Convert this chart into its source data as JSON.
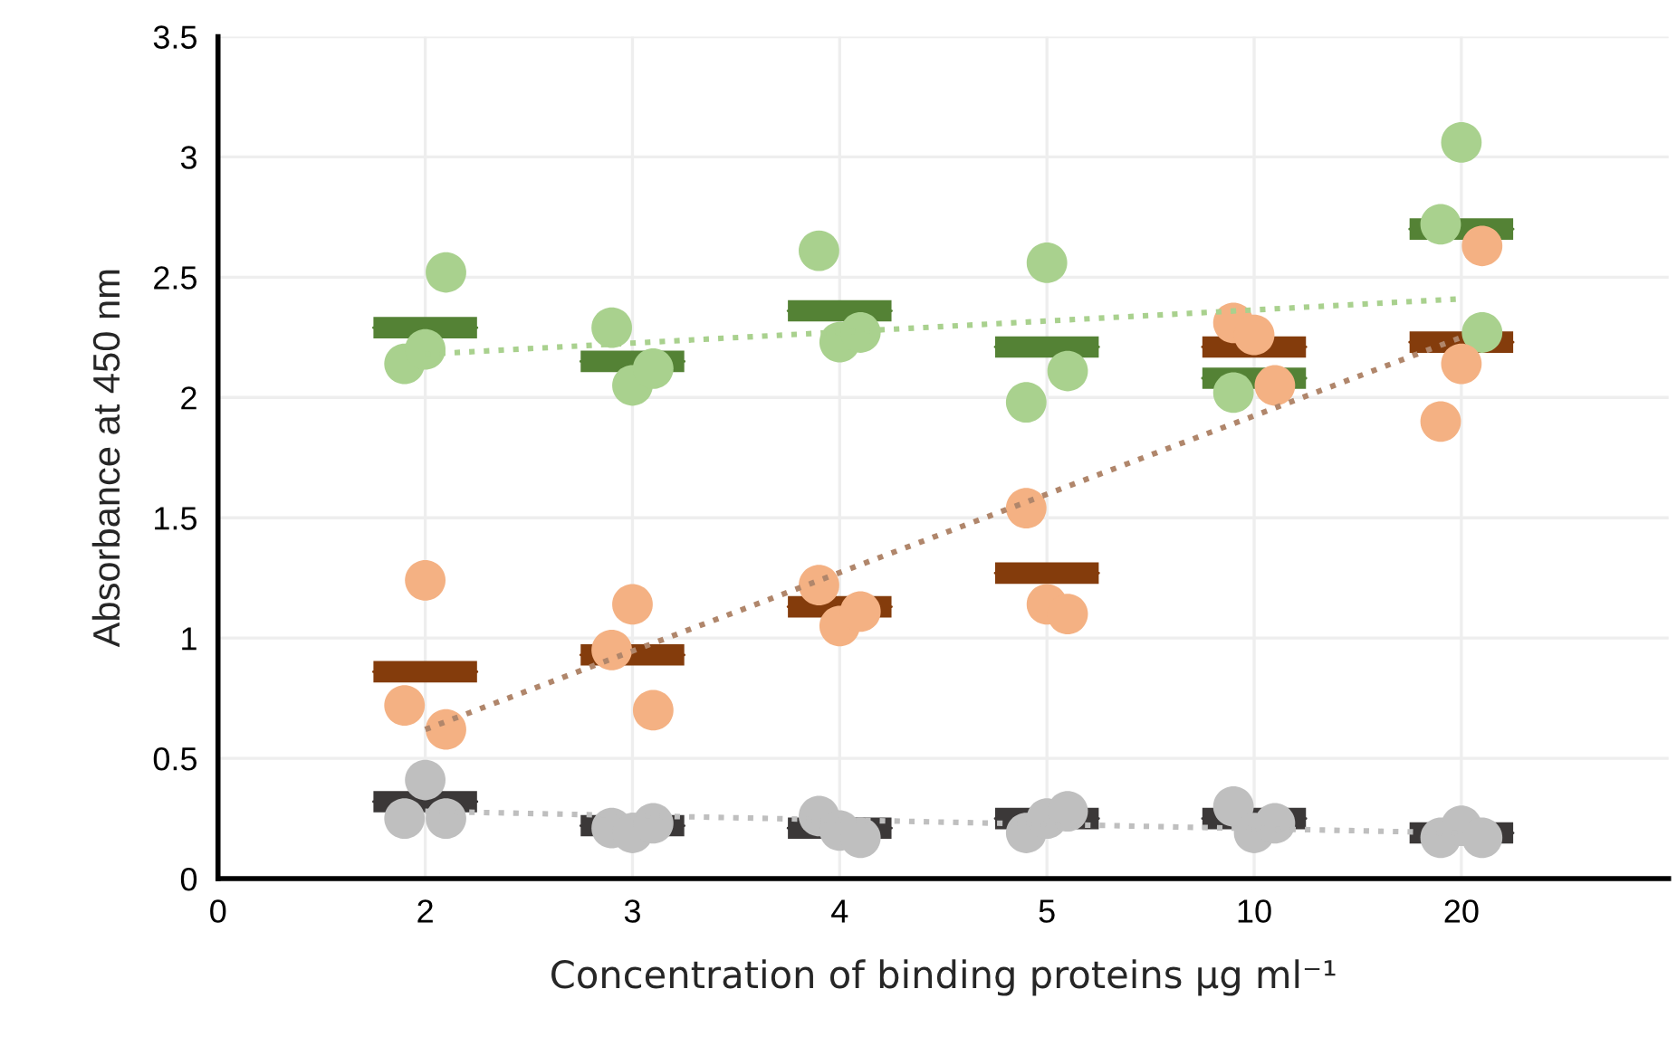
{
  "chart_data": {
    "type": "scatter",
    "xlabel": "Concentration of binding proteins µg ml⁻¹",
    "ylabel": "Absorbance at 450 nm",
    "categories": [
      "0",
      "2",
      "3",
      "4",
      "5",
      "10",
      "20"
    ],
    "ylim": [
      0,
      3.5
    ],
    "yticks": [
      0,
      0.5,
      1,
      1.5,
      2,
      2.5,
      3,
      3.5
    ],
    "grid": true,
    "series": [
      {
        "marker": "circle",
        "color": "#a9d18e",
        "x": [
          "2",
          "2",
          "2",
          "3",
          "3",
          "3",
          "4",
          "4",
          "4",
          "5",
          "5",
          "5",
          "10",
          "10",
          "10",
          "20",
          "20",
          "20"
        ],
        "values": [
          2.14,
          2.2,
          2.52,
          2.29,
          2.05,
          2.12,
          2.61,
          2.23,
          2.27,
          1.98,
          2.56,
          2.11,
          2.02,
          null,
          null,
          2.72,
          3.06,
          2.27
        ]
      },
      {
        "marker": "circle",
        "color": "#f4b183",
        "x": [
          "2",
          "2",
          "2",
          "3",
          "3",
          "3",
          "4",
          "4",
          "4",
          "5",
          "5",
          "5",
          "10",
          "10",
          "10",
          "20",
          "20",
          "20"
        ],
        "values": [
          0.72,
          1.24,
          0.62,
          0.95,
          1.14,
          0.7,
          1.22,
          1.05,
          1.11,
          1.54,
          1.14,
          1.1,
          2.31,
          2.26,
          2.05,
          1.9,
          2.14,
          2.63
        ]
      },
      {
        "marker": "circle",
        "color": "#bfbfbf",
        "x": [
          "2",
          "2",
          "2",
          "3",
          "3",
          "3",
          "4",
          "4",
          "4",
          "5",
          "5",
          "5",
          "10",
          "10",
          "10",
          "20",
          "20",
          "20"
        ],
        "values": [
          0.25,
          0.41,
          0.25,
          0.21,
          0.19,
          0.23,
          0.26,
          0.2,
          0.17,
          0.19,
          0.25,
          0.28,
          0.3,
          0.19,
          0.23,
          0.17,
          0.22,
          0.17
        ]
      },
      {
        "type": "box",
        "color": "#548235",
        "boxes": [
          null,
          {
            "low": 2.29,
            "q1": 2.29,
            "median": 2.29,
            "q3": 2.29,
            "high": 2.29
          },
          {
            "low": 2.15,
            "q1": 2.15,
            "median": 2.15,
            "q3": 2.15,
            "high": 2.15
          },
          {
            "low": 2.36,
            "q1": 2.36,
            "median": 2.36,
            "q3": 2.36,
            "high": 2.36
          },
          {
            "low": 2.21,
            "q1": 2.21,
            "median": 2.21,
            "q3": 2.21,
            "high": 2.21
          },
          {
            "low": 2.08,
            "q1": 2.08,
            "median": 2.08,
            "q3": 2.08,
            "high": 2.08
          },
          {
            "low": 2.7,
            "q1": 2.7,
            "median": 2.7,
            "q3": 2.7,
            "high": 2.7
          }
        ]
      },
      {
        "type": "box",
        "color": "#843c0c",
        "boxes": [
          null,
          {
            "low": 0.86,
            "q1": 0.86,
            "median": 0.86,
            "q3": 0.86,
            "high": 0.86
          },
          {
            "low": 0.93,
            "q1": 0.93,
            "median": 0.93,
            "q3": 0.93,
            "high": 0.93
          },
          {
            "low": 1.13,
            "q1": 1.13,
            "median": 1.13,
            "q3": 1.13,
            "high": 1.13
          },
          {
            "low": 1.27,
            "q1": 1.27,
            "median": 1.27,
            "q3": 1.27,
            "high": 1.27
          },
          {
            "low": 2.21,
            "q1": 2.21,
            "median": 2.21,
            "q3": 2.21,
            "high": 2.21
          },
          {
            "low": 2.23,
            "q1": 2.23,
            "median": 2.23,
            "q3": 2.23,
            "high": 2.23
          }
        ]
      },
      {
        "type": "box",
        "color": "#3b3838",
        "boxes": [
          null,
          {
            "low": 0.32,
            "q1": 0.32,
            "median": 0.32,
            "q3": 0.32,
            "high": 0.32
          },
          {
            "low": 0.22,
            "q1": 0.22,
            "median": 0.22,
            "q3": 0.22,
            "high": 0.22
          },
          {
            "low": 0.21,
            "q1": 0.21,
            "median": 0.21,
            "q3": 0.21,
            "high": 0.21
          },
          {
            "low": 0.25,
            "q1": 0.25,
            "median": 0.25,
            "q3": 0.25,
            "high": 0.25
          },
          {
            "low": 0.25,
            "q1": 0.25,
            "median": 0.25,
            "q3": 0.25,
            "high": 0.25
          },
          {
            "low": 0.19,
            "q1": 0.19,
            "median": 0.19,
            "q3": 0.19,
            "high": 0.19
          }
        ]
      },
      {
        "type": "line",
        "line_style": "dotted",
        "color": "#a9d18e",
        "x": [
          "2",
          "20"
        ],
        "values": [
          2.18,
          2.41
        ]
      },
      {
        "type": "line",
        "line_style": "dotted",
        "color": "#b0866b",
        "x": [
          "2",
          "20"
        ],
        "values": [
          0.62,
          2.25
        ]
      },
      {
        "type": "line",
        "line_style": "dotted",
        "color": "#bfbfbf",
        "x": [
          "2",
          "20"
        ],
        "values": [
          0.28,
          0.19
        ]
      }
    ]
  }
}
